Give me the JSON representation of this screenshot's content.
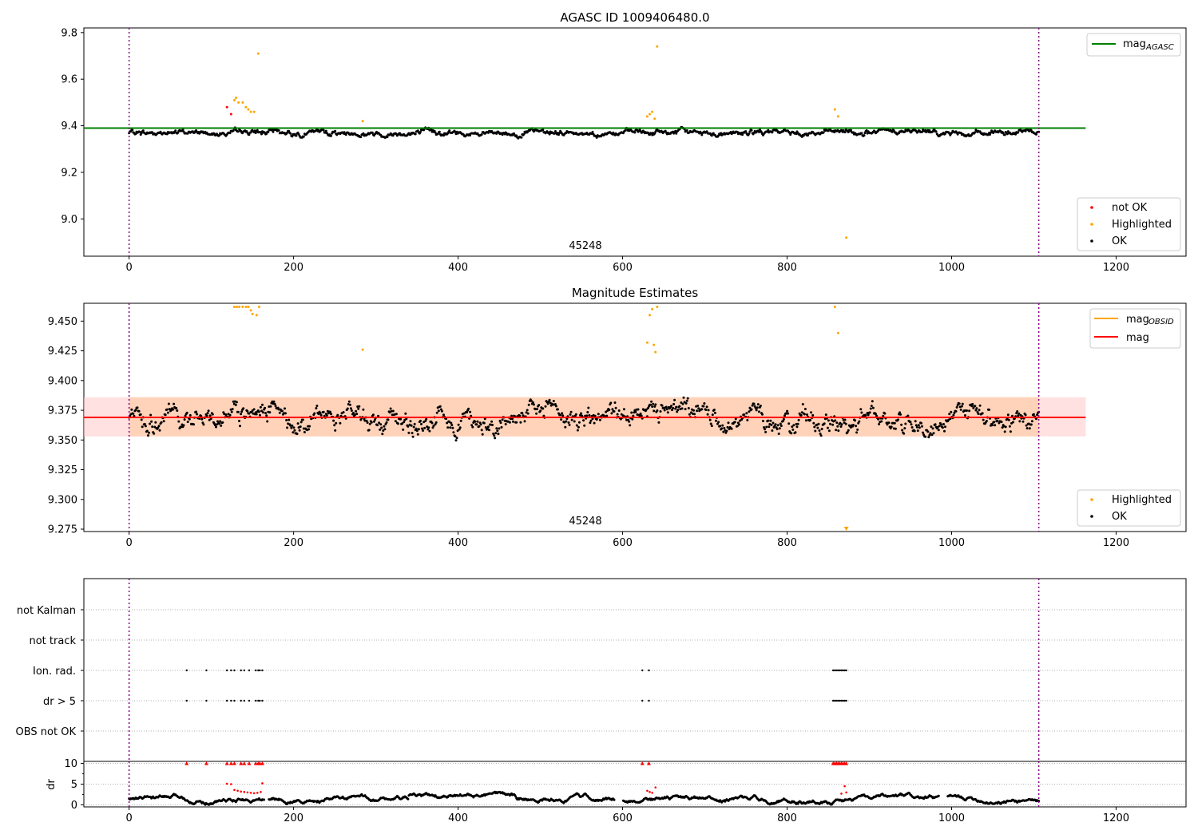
{
  "chart_data": [
    {
      "type": "scatter",
      "title": "AGASC ID 1009406480.0",
      "annotation": "45248",
      "xlim": [
        -55,
        1285
      ],
      "ylim": [
        8.84,
        9.82
      ],
      "xticks": [
        0,
        200,
        400,
        600,
        800,
        1000,
        1200
      ],
      "xtick_labels": [
        "0",
        "200",
        "400",
        "600",
        "800",
        "1000",
        "1200"
      ],
      "yticks": [
        9.0,
        9.2,
        9.4,
        9.6,
        9.8
      ],
      "ytick_labels": [
        "9.0",
        "9.2",
        "9.4",
        "9.6",
        "9.8"
      ],
      "vlines": [
        0,
        1106
      ],
      "hline": {
        "y": 9.39,
        "x_range": [
          -55,
          1163
        ],
        "color": "#008000"
      },
      "legend_top": {
        "position": "top-right",
        "entries": [
          {
            "label": "mag",
            "sub": "AGASC",
            "color": "#008000"
          }
        ]
      },
      "legend_bottom": {
        "position": "lower-right",
        "entries": [
          {
            "label": "not OK",
            "color": "#ff0000"
          },
          {
            "label": "Highlighted",
            "color": "#ffa500"
          },
          {
            "label": "OK",
            "color": "#000000"
          }
        ]
      },
      "highlighted_points": [
        [
          128,
          9.51
        ],
        [
          130,
          9.52
        ],
        [
          133,
          9.5
        ],
        [
          138,
          9.5
        ],
        [
          142,
          9.48
        ],
        [
          145,
          9.47
        ],
        [
          148,
          9.46
        ],
        [
          152,
          9.46
        ],
        [
          157,
          9.71
        ],
        [
          284,
          9.42
        ],
        [
          630,
          9.44
        ],
        [
          633,
          9.45
        ],
        [
          636,
          9.46
        ],
        [
          639,
          9.43
        ],
        [
          642,
          9.74
        ],
        [
          858,
          9.47
        ],
        [
          862,
          9.44
        ],
        [
          872,
          8.92
        ]
      ],
      "not_ok_points": [
        [
          119,
          9.48
        ],
        [
          124,
          9.45
        ]
      ],
      "ok_series": {
        "x_start": 0,
        "x_end": 1106,
        "n": 1100,
        "mean": 9.37,
        "spread": 0.02
      }
    },
    {
      "type": "scatter",
      "title": "Magnitude Estimates",
      "annotation": "45248",
      "xlim": [
        -55,
        1285
      ],
      "ylim": [
        9.273,
        9.465
      ],
      "xticks": [
        0,
        200,
        400,
        600,
        800,
        1000,
        1200
      ],
      "xtick_labels": [
        "0",
        "200",
        "400",
        "600",
        "800",
        "1000",
        "1200"
      ],
      "yticks": [
        9.275,
        9.3,
        9.325,
        9.35,
        9.375,
        9.4,
        9.425,
        9.45
      ],
      "ytick_labels": [
        "9.275",
        "9.300",
        "9.325",
        "9.350",
        "9.375",
        "9.400",
        "9.425",
        "9.450"
      ],
      "vlines": [
        0,
        1106
      ],
      "hline": {
        "y": 9.369,
        "x_range": [
          -55,
          1163
        ],
        "color": "#ff0000"
      },
      "band": {
        "y_low": 9.353,
        "y_high": 9.386,
        "x_range": [
          -55,
          1163
        ],
        "color": "#ffc8c8"
      },
      "band2": {
        "y_low": 9.353,
        "y_high": 9.386,
        "x_range": [
          0,
          1106
        ],
        "color": "#ffd0b0"
      },
      "legend_top": {
        "position": "top-right",
        "entries": [
          {
            "label": "mag",
            "sub": "OBSID",
            "color": "#ffa500"
          },
          {
            "label": "mag",
            "sub": "",
            "color": "#ff0000"
          }
        ]
      },
      "legend_bottom": {
        "position": "lower-right",
        "entries": [
          {
            "label": "Highlighted",
            "color": "#ffa500"
          },
          {
            "label": "OK",
            "color": "#000000"
          }
        ]
      },
      "highlighted_points": [
        [
          128,
          9.462
        ],
        [
          131,
          9.462
        ],
        [
          134,
          9.462
        ],
        [
          138,
          9.462
        ],
        [
          142,
          9.462
        ],
        [
          145,
          9.462
        ],
        [
          148,
          9.459
        ],
        [
          150,
          9.456
        ],
        [
          155,
          9.455
        ],
        [
          158,
          9.462
        ],
        [
          284,
          9.426
        ],
        [
          630,
          9.432
        ],
        [
          633,
          9.455
        ],
        [
          636,
          9.46
        ],
        [
          638,
          9.43
        ],
        [
          640,
          9.424
        ],
        [
          642,
          9.462
        ],
        [
          858,
          9.462
        ],
        [
          862,
          9.44
        ]
      ],
      "clipped_markers": [
        [
          872,
          9.275
        ]
      ],
      "ok_series": {
        "x_start": 0,
        "x_end": 1106,
        "n": 1100,
        "mean": 9.369,
        "spread": 0.016
      }
    },
    {
      "type": "scatter",
      "title": "",
      "xlim": [
        -55,
        1285
      ],
      "categories": [
        "not Kalman",
        "not track",
        "Ion. rad.",
        "dr > 5",
        "OBS not OK"
      ],
      "vlines": [
        0,
        1106
      ],
      "flag_points": {
        "Ion. rad.": [
          70,
          94,
          119,
          124,
          128,
          136,
          140,
          146,
          154,
          157,
          159,
          162,
          624,
          632,
          856,
          858,
          860,
          862,
          864,
          866,
          868,
          870,
          872
        ],
        "dr > 5": [
          70,
          94,
          119,
          124,
          128,
          136,
          140,
          146,
          154,
          157,
          159,
          162,
          624,
          632,
          856,
          858,
          860,
          862,
          864,
          866,
          868,
          870,
          872
        ]
      }
    },
    {
      "type": "scatter",
      "title": "",
      "ylabel": "dr",
      "xlim": [
        -55,
        1285
      ],
      "ylim": [
        -0.5,
        10.5
      ],
      "xticks": [
        0,
        200,
        400,
        600,
        800,
        1000,
        1200
      ],
      "xtick_labels": [
        "0",
        "200",
        "400",
        "600",
        "800",
        "1000",
        "1200"
      ],
      "yticks": [
        0,
        5,
        10
      ],
      "ytick_labels": [
        "0",
        "5",
        "10"
      ],
      "vlines": [
        0,
        1106
      ],
      "capped_red": [
        70,
        94,
        119,
        124,
        128,
        136,
        140,
        146,
        154,
        157,
        159,
        162,
        624,
        632,
        856,
        858,
        860,
        862,
        864,
        866,
        868,
        870,
        872
      ],
      "red_points": [
        [
          119,
          5.1
        ],
        [
          124,
          5
        ],
        [
          128,
          3.6
        ],
        [
          132,
          3.4
        ],
        [
          136,
          3.2
        ],
        [
          140,
          3.1
        ],
        [
          144,
          3.0
        ],
        [
          148,
          2.9
        ],
        [
          152,
          2.8
        ],
        [
          156,
          2.9
        ],
        [
          160,
          3.1
        ],
        [
          162,
          5.2
        ],
        [
          630,
          3.4
        ],
        [
          633,
          3.1
        ],
        [
          636,
          2.9
        ],
        [
          640,
          4.2
        ],
        [
          866,
          2.7
        ],
        [
          870,
          4.5
        ],
        [
          872,
          3.0
        ]
      ],
      "gaps": [
        [
          165,
          170
        ],
        [
          590,
          600
        ],
        [
          985,
          995
        ]
      ],
      "ok_series": {
        "x_start": 0,
        "x_end": 1106,
        "n": 1100,
        "mean": 1.3,
        "spread": 0.5
      }
    }
  ]
}
